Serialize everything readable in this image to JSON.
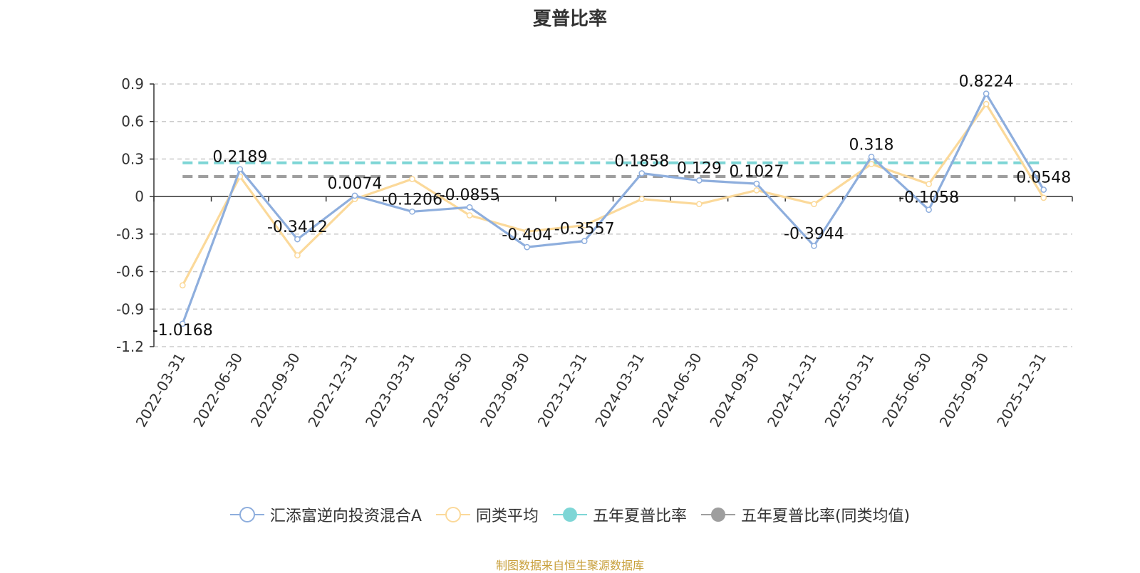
{
  "title": "夏普比率",
  "source": "制图数据来自恒生聚源数据库",
  "colors": {
    "fund": "#8eaedd",
    "avg": "#fbd99a",
    "five_year": "#7ed6d6",
    "five_year_avg": "#9e9e9e",
    "grid": "#cccccc",
    "axis": "#333333"
  },
  "legend": [
    {
      "label": "汇添富逆向投资混合A",
      "icon": "hollow-circle-line-icon",
      "color": "#8eaedd"
    },
    {
      "label": "同类平均",
      "icon": "hollow-circle-line-icon",
      "color": "#fbd99a"
    },
    {
      "label": "五年夏普比率",
      "icon": "filled-circle-line-icon",
      "color": "#7ed6d6"
    },
    {
      "label": "五年夏普比率(同类均值)",
      "icon": "filled-circle-line-icon",
      "color": "#9e9e9e"
    }
  ],
  "chart_data": {
    "type": "line",
    "title": "夏普比率",
    "categories": [
      "2022-03-31",
      "2022-06-30",
      "2022-09-30",
      "2022-12-31",
      "2023-03-31",
      "2023-06-30",
      "2023-09-30",
      "2023-12-31",
      "2024-03-31",
      "2024-06-30",
      "2024-09-30",
      "2024-12-31",
      "2025-03-31",
      "2025-06-30",
      "2025-09-30",
      "2025-12-31"
    ],
    "ylim": [
      -1.2,
      0.9
    ],
    "yticks": [
      "0.9",
      "0.6",
      "0.3",
      "0",
      "-0.3",
      "-0.6",
      "-0.9",
      "-1.2"
    ],
    "grid": true,
    "legend_position": "bottom",
    "series": [
      {
        "name": "汇添富逆向投资混合A",
        "values": [
          -1.0168,
          0.2189,
          -0.3412,
          0.0074,
          -0.1206,
          -0.0855,
          -0.404,
          -0.3557,
          0.1858,
          0.129,
          0.1027,
          -0.3944,
          0.318,
          -0.1058,
          0.8224,
          0.0548
        ],
        "labels": [
          "-1.0168",
          "0.2189",
          "-0.3412",
          "0.0074",
          "-0.1206",
          "-0.0855",
          "-0.404",
          "-0.3557",
          "0.1858",
          "0.129",
          "0.1027",
          "-0.3944",
          "0.318",
          "-0.1058",
          "0.8224",
          "0.0548"
        ]
      },
      {
        "name": "同类平均",
        "values": [
          -0.71,
          0.16,
          -0.47,
          -0.02,
          0.14,
          -0.15,
          -0.28,
          -0.23,
          -0.02,
          -0.06,
          0.05,
          -0.06,
          0.26,
          0.1,
          0.74,
          -0.01
        ]
      },
      {
        "name": "五年夏普比率",
        "type": "reference",
        "value": 0.27
      },
      {
        "name": "五年夏普比率(同类均值)",
        "type": "reference",
        "value": 0.16
      }
    ]
  }
}
